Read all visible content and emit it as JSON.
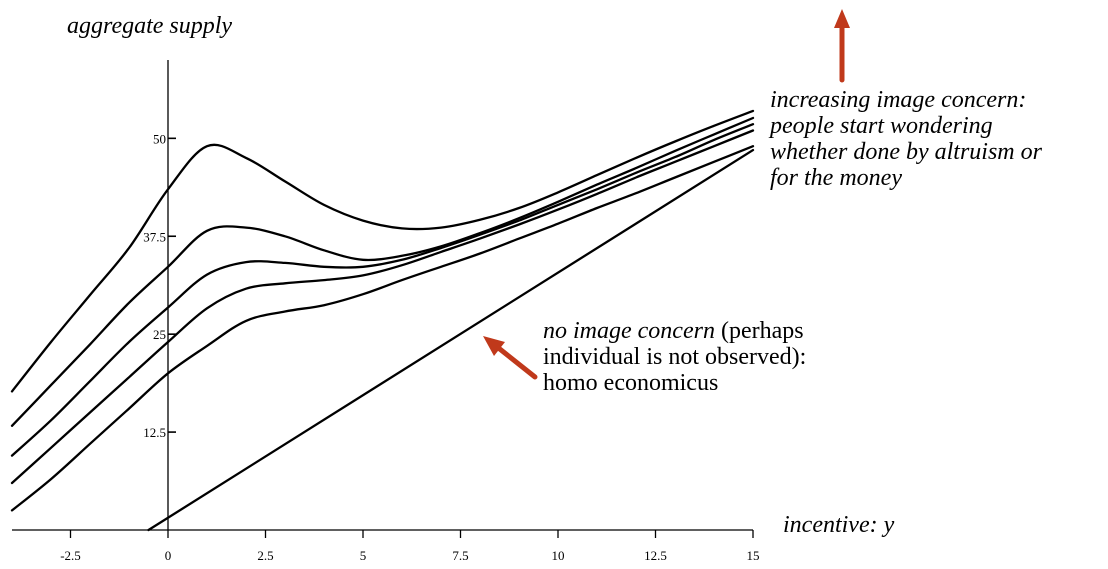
{
  "chart_data": {
    "type": "line",
    "ylabel": "aggregate supply",
    "xlabel": "incentive",
    "xlabel_variable": "y",
    "xlim": [
      -4,
      15
    ],
    "ylim": [
      0,
      60
    ],
    "x_ticks": [
      "-2.5",
      "0",
      "2.5",
      "5",
      "7.5",
      "10",
      "12.5",
      "15"
    ],
    "y_ticks": [
      "12.5",
      "25",
      "37.5",
      "50"
    ],
    "series": [
      {
        "x": [
          -4,
          -3,
          -2,
          -1,
          0,
          1,
          2,
          3,
          4,
          5,
          6,
          7,
          8,
          9,
          10,
          11,
          12,
          13,
          14,
          15
        ],
        "y": [
          2.5,
          6.5,
          11,
          15.5,
          20,
          23.5,
          26.7,
          27.9,
          28.7,
          30.1,
          31.9,
          33.6,
          35.3,
          37.2,
          39.1,
          41.1,
          43,
          45,
          47,
          49
        ]
      },
      {
        "x": [
          -4,
          -3,
          -2,
          -1,
          0,
          1,
          2,
          3,
          4,
          5,
          6,
          7,
          8,
          9,
          10,
          11,
          12,
          13,
          14,
          15
        ],
        "y": [
          6,
          10.5,
          15,
          19.5,
          24,
          28.3,
          30.8,
          31.5,
          31.9,
          32.5,
          33.8,
          35.5,
          37.2,
          39,
          40.9,
          42.9,
          45,
          47,
          49,
          51
        ]
      },
      {
        "x": [
          -4,
          -3,
          -2,
          -1,
          0,
          1,
          2,
          3,
          4,
          5,
          6,
          7,
          8,
          9,
          10,
          11,
          12,
          13,
          14,
          15
        ],
        "y": [
          9.5,
          14,
          19,
          24,
          28.4,
          32.6,
          34.2,
          34.1,
          33.6,
          33.6,
          34.5,
          36,
          37.7,
          39.5,
          41.5,
          43.5,
          45.6,
          47.6,
          49.8,
          51.8
        ]
      },
      {
        "x": [
          -4,
          -3,
          -2,
          -1,
          0,
          1,
          2,
          3,
          4,
          5,
          6,
          7,
          8,
          9,
          10,
          11,
          12,
          13,
          14,
          15
        ],
        "y": [
          13.3,
          18.5,
          23.7,
          29,
          33.6,
          38.2,
          38.6,
          37.5,
          35.7,
          34.5,
          35,
          36.2,
          37.9,
          39.8,
          41.9,
          44.1,
          46.2,
          48.4,
          50.5,
          52.6
        ]
      },
      {
        "x": [
          -4,
          -3,
          -2,
          -1,
          0,
          1,
          2,
          3,
          4,
          5,
          6,
          7,
          8,
          9,
          10,
          11,
          12,
          13,
          14,
          15
        ],
        "y": [
          17.7,
          24,
          30,
          36,
          43.5,
          49,
          47.5,
          44.5,
          41.5,
          39.5,
          38.5,
          38.6,
          39.6,
          41.1,
          43.1,
          45.3,
          47.5,
          49.6,
          51.6,
          53.5
        ]
      },
      {
        "x": [
          -0.5,
          15
        ],
        "y": [
          0,
          48.5
        ]
      }
    ],
    "annotations": {
      "top": {
        "lines": [
          "increasing image concern:",
          "people start wondering",
          "whether done by altruism or",
          "for the money"
        ]
      },
      "bottom": {
        "line1_italic": "no image concern",
        "line1_rest": " (perhaps",
        "line2": "individual is not observed):",
        "line3": "homo economicus"
      }
    },
    "colors": {
      "curves": "#000000",
      "arrows": "#c0391b"
    },
    "grid": false
  }
}
